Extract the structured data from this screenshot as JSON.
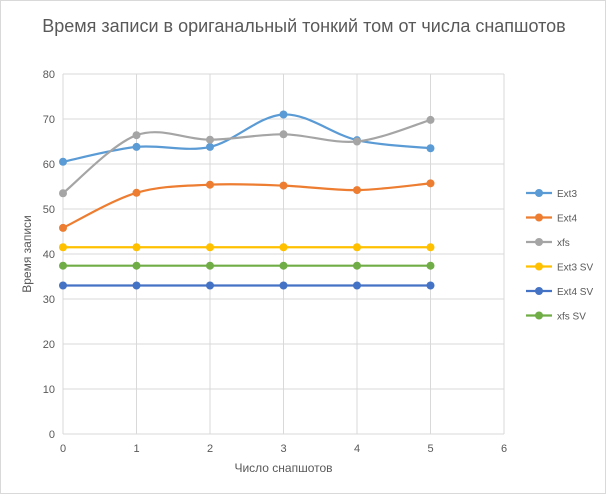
{
  "chart_data": {
    "type": "line",
    "title": "Время записи в ориганальный тонкий том от числа снапшотов",
    "xlabel": "Число снапшотов",
    "ylabel": "Время записи",
    "xlim": [
      0,
      6
    ],
    "ylim": [
      0,
      80
    ],
    "xticks": [
      "0",
      "1",
      "2",
      "3",
      "4",
      "5",
      "6"
    ],
    "yticks": [
      "0",
      "10",
      "20",
      "30",
      "40",
      "50",
      "60",
      "70",
      "80"
    ],
    "grid": true,
    "smooth": true,
    "legend": "right",
    "x": [
      0,
      1,
      2,
      3,
      4,
      5
    ],
    "series": [
      {
        "name": "Ext3",
        "color": "#5b9bd5",
        "values": [
          60.5,
          63.8,
          63.8,
          71.0,
          65.3,
          63.5
        ]
      },
      {
        "name": "Ext4",
        "color": "#ed7d31",
        "values": [
          45.8,
          53.6,
          55.4,
          55.2,
          54.2,
          55.7
        ]
      },
      {
        "name": "xfs",
        "color": "#a5a5a5",
        "values": [
          53.5,
          66.4,
          65.4,
          66.6,
          65.0,
          69.8
        ]
      },
      {
        "name": "Ext3 SV",
        "color": "#ffc000",
        "values": [
          41.5,
          41.5,
          41.5,
          41.5,
          41.5,
          41.5
        ]
      },
      {
        "name": "Ext4 SV",
        "color": "#4472c4",
        "values": [
          33.0,
          33.0,
          33.0,
          33.0,
          33.0,
          33.0
        ]
      },
      {
        "name": "xfs SV",
        "color": "#70ad47",
        "values": [
          37.4,
          37.4,
          37.4,
          37.4,
          37.4,
          37.4
        ]
      }
    ]
  }
}
